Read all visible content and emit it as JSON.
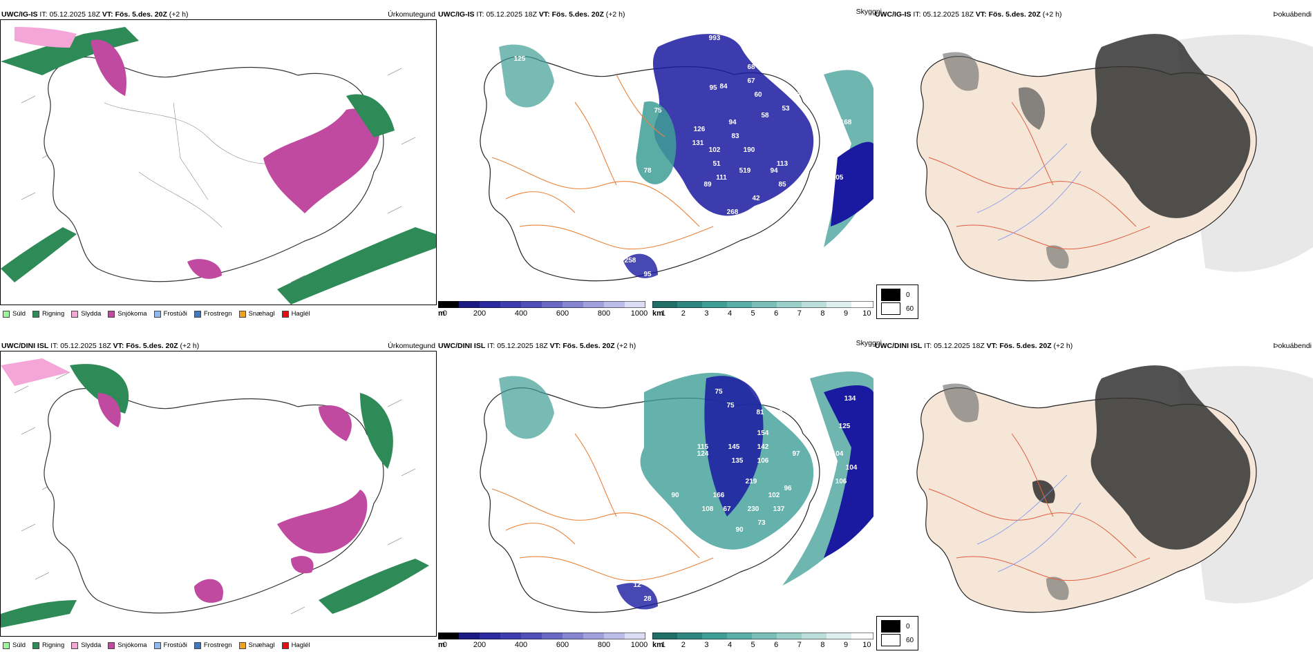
{
  "rows": [
    {
      "model": "UWC/IG-IS",
      "it_label": "IT:",
      "it_value": "05.12.2025 18Z",
      "vt_label": "VT: Fös. 5.des. 20Z",
      "lead": "(+2 h)",
      "panels": {
        "precip": "Úrkomutegund",
        "cloud": "Skyggni",
        "fog": "Þokuábendi"
      },
      "cloud_labels": [
        "993",
        "68",
        "67",
        "125",
        "60",
        "60",
        "76",
        "53",
        "58",
        "75",
        "84",
        "95",
        "131",
        "126",
        "94",
        "83",
        "190",
        "102",
        "51",
        "519",
        "113",
        "94",
        "85",
        "78",
        "89",
        "111",
        "42",
        "268",
        "63",
        "28",
        "258",
        "95",
        "168",
        "105"
      ]
    },
    {
      "model": "UWC/DINI ISL",
      "it_label": "IT:",
      "it_value": "05.12.2025 18Z",
      "vt_label": "VT: Fös. 5.des. 20Z",
      "lead": "(+2 h)",
      "panels": {
        "precip": "Úrkomutegund",
        "cloud": "Skyggni",
        "fog": "Þokuábendi"
      },
      "cloud_labels": [
        "129",
        "104",
        "75",
        "75",
        "81",
        "60",
        "50",
        "115",
        "124",
        "145",
        "135",
        "154",
        "142",
        "106",
        "97",
        "219",
        "102",
        "96",
        "166",
        "108",
        "67",
        "230",
        "137",
        "89",
        "90",
        "90",
        "73",
        "27",
        "93",
        "12",
        "28",
        "134",
        "125",
        "104",
        "104",
        "106"
      ]
    }
  ],
  "precip_legend": [
    {
      "label": "Súld",
      "color": "#9df59d"
    },
    {
      "label": "Rigning",
      "color": "#2e8b57"
    },
    {
      "label": "Slydda",
      "color": "#f4a6d8"
    },
    {
      "label": "Snjókoma",
      "color": "#c04aa0"
    },
    {
      "label": "Frostúði",
      "color": "#8fb8ef"
    },
    {
      "label": "Frostregn",
      "color": "#3e78c8"
    },
    {
      "label": "Snæhagl",
      "color": "#f0a020"
    },
    {
      "label": "Haglél",
      "color": "#e01010"
    }
  ],
  "cbar_height": {
    "unit": "m",
    "ticks": [
      "0",
      "200",
      "400",
      "600",
      "800",
      "1000"
    ]
  },
  "cbar_vis": {
    "unit": "km",
    "ticks": [
      "1",
      "2",
      "3",
      "4",
      "5",
      "6",
      "7",
      "8",
      "9",
      "10"
    ]
  },
  "fog_legend": {
    "black": "0",
    "white": "60"
  },
  "colors": {
    "land": "#f5e6d8",
    "roads": "#e8833a",
    "snow": "#c04aa0",
    "rain": "#2e8b57",
    "cloud_low": "#1a1aa0",
    "vis_teal": "#3f9e96"
  }
}
